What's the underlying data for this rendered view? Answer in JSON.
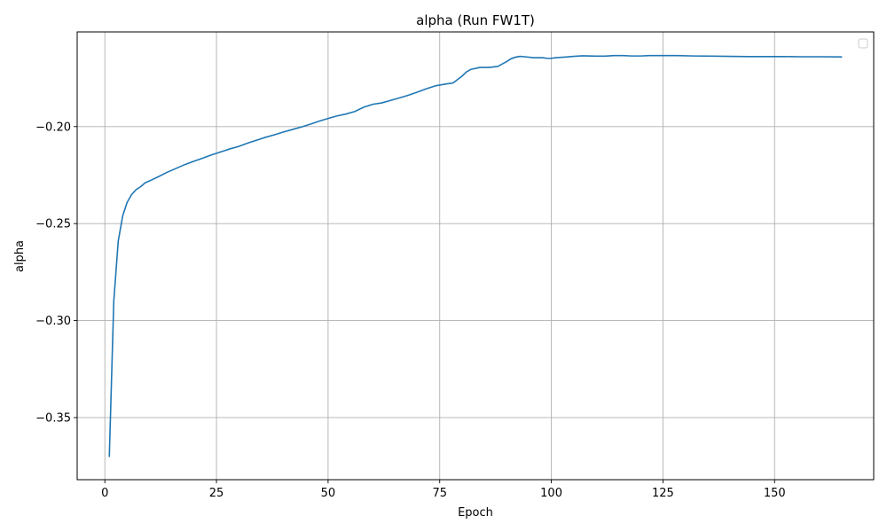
{
  "chart_data": {
    "type": "line",
    "title": "alpha (Run FW1T)",
    "xlabel": "Epoch",
    "ylabel": "alpha",
    "xlim": [
      -6.2,
      172.2
    ],
    "ylim": [
      -0.382,
      -0.1512
    ],
    "xticks": [
      0,
      25,
      50,
      75,
      100,
      125,
      150
    ],
    "xtick_labels": [
      "0",
      "25",
      "50",
      "75",
      "100",
      "125",
      "150"
    ],
    "yticks": [
      -0.35,
      -0.3,
      -0.25,
      -0.2
    ],
    "ytick_labels": [
      "−0.35",
      "−0.30",
      "−0.25",
      "−0.20"
    ],
    "grid": true,
    "legend": {
      "location": "top-right",
      "entries": []
    },
    "series": [
      {
        "name": "alpha",
        "color": "#1f77b4",
        "x": [
          1,
          2,
          3,
          4,
          5,
          6,
          7,
          8,
          9,
          10,
          12,
          14,
          16,
          18,
          20,
          22,
          24,
          26,
          28,
          30,
          32,
          34,
          36,
          38,
          40,
          42,
          44,
          46,
          48,
          50,
          52,
          54,
          56,
          58,
          60,
          62,
          64,
          66,
          68,
          70,
          72,
          74,
          76,
          78,
          80,
          81,
          82,
          84,
          86,
          88,
          90,
          91,
          92,
          93,
          94,
          96,
          98,
          99,
          100,
          101,
          103,
          105,
          107,
          110,
          112,
          114,
          116,
          118,
          120,
          122,
          124,
          128,
          132,
          136,
          140,
          144,
          148,
          152,
          156,
          160,
          165
        ],
        "y": [
          -0.37,
          -0.29,
          -0.259,
          -0.246,
          -0.239,
          -0.235,
          -0.2325,
          -0.231,
          -0.229,
          -0.228,
          -0.2258,
          -0.2235,
          -0.2215,
          -0.2195,
          -0.2178,
          -0.2162,
          -0.2145,
          -0.213,
          -0.2115,
          -0.2102,
          -0.2085,
          -0.207,
          -0.2055,
          -0.2042,
          -0.2028,
          -0.2015,
          -0.2002,
          -0.1988,
          -0.1972,
          -0.1958,
          -0.1945,
          -0.1935,
          -0.1922,
          -0.19,
          -0.1885,
          -0.1878,
          -0.1865,
          -0.1852,
          -0.1838,
          -0.1822,
          -0.1805,
          -0.179,
          -0.1782,
          -0.1775,
          -0.174,
          -0.1718,
          -0.1705,
          -0.1695,
          -0.1695,
          -0.169,
          -0.1665,
          -0.165,
          -0.1642,
          -0.1638,
          -0.164,
          -0.1645,
          -0.1645,
          -0.1648,
          -0.1648,
          -0.1645,
          -0.1642,
          -0.1638,
          -0.1635,
          -0.1637,
          -0.1637,
          -0.1634,
          -0.1634,
          -0.1636,
          -0.1636,
          -0.1634,
          -0.1634,
          -0.1634,
          -0.1636,
          -0.1637,
          -0.1638,
          -0.1639,
          -0.1639,
          -0.1639,
          -0.164,
          -0.164,
          -0.1641
        ]
      }
    ]
  }
}
